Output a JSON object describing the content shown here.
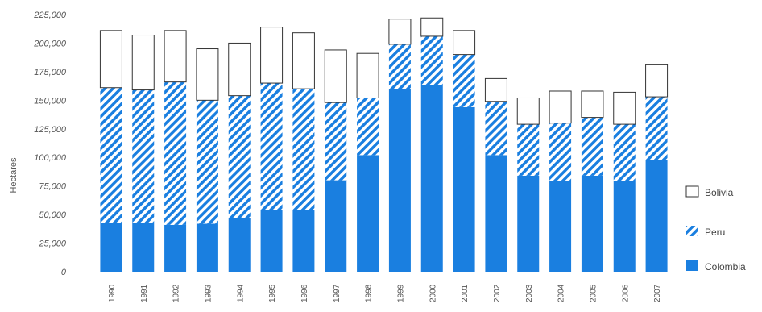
{
  "chart_data": {
    "type": "bar",
    "stacked": true,
    "ylabel": "Hectares",
    "xlabel": "",
    "ylim": [
      0,
      225000
    ],
    "yticks": [
      0,
      25000,
      50000,
      75000,
      100000,
      125000,
      150000,
      175000,
      200000,
      225000
    ],
    "ytick_labels": [
      "0",
      "25,000",
      "50,000",
      "75,000",
      "100,000",
      "125,000",
      "150,000",
      "175,000",
      "200,000",
      "225,000"
    ],
    "categories": [
      "1990",
      "1991",
      "1992",
      "1993",
      "1994",
      "1995",
      "1996",
      "1997",
      "1998",
      "1999",
      "2000",
      "2001",
      "2002",
      "2003",
      "2004",
      "2005",
      "2006",
      "2007"
    ],
    "series": [
      {
        "name": "Colombia",
        "color": "#1a7fe0",
        "pattern": "solid",
        "values": [
          43000,
          43000,
          41000,
          42000,
          47000,
          54000,
          54000,
          80000,
          102000,
          160000,
          163000,
          144000,
          102000,
          84000,
          79000,
          84000,
          79000,
          98000
        ]
      },
      {
        "name": "Peru",
        "color": "#1a7fe0",
        "pattern": "hatched",
        "values": [
          118000,
          116000,
          125000,
          108000,
          107000,
          111000,
          106000,
          68000,
          50000,
          39000,
          43000,
          46000,
          47000,
          45000,
          51000,
          51000,
          50000,
          55000
        ]
      },
      {
        "name": "Bolivia",
        "color": "#ffffff",
        "pattern": "outline",
        "values": [
          50000,
          48000,
          45000,
          45000,
          46000,
          49000,
          49000,
          46000,
          39000,
          22000,
          16000,
          21000,
          20000,
          23000,
          28000,
          23000,
          28000,
          28000
        ]
      }
    ],
    "legend": {
      "placement": "right",
      "items": [
        {
          "label": "Bolivia",
          "pattern": "outline"
        },
        {
          "label": "Peru",
          "pattern": "hatched"
        },
        {
          "label": "Colombia",
          "pattern": "solid"
        }
      ]
    },
    "grid": false
  }
}
